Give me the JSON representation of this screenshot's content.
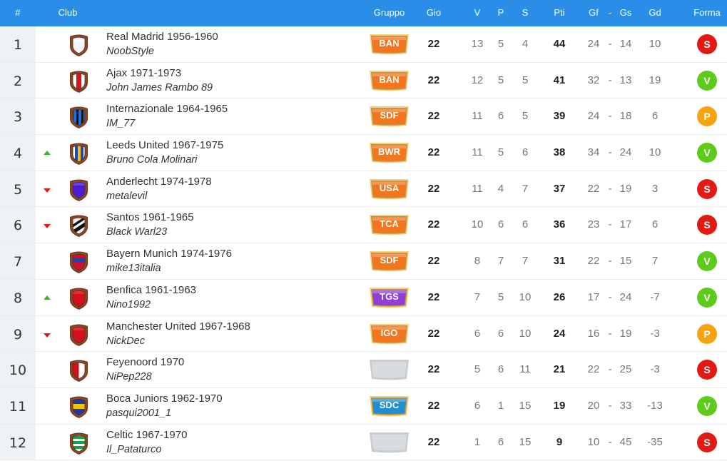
{
  "header": {
    "rank": "#",
    "club": "Club",
    "group": "Gruppo",
    "played": "Gio",
    "won": "V",
    "drawn": "P",
    "lost": "S",
    "points": "Pti",
    "goals_for": "Gf",
    "dash": "-",
    "goals_against": "Gs",
    "goal_diff": "Gd",
    "form": "Forma"
  },
  "colors": {
    "header_bg": "#2a8ee8",
    "form_S": "#e11a14",
    "form_V": "#5dcb19",
    "form_P": "#f7a30e",
    "badge_orange": "#f3761c",
    "badge_purple": "#8e3fd6",
    "badge_blue": "#1f8fd1",
    "badge_empty": "#d9dcdf"
  },
  "rows": [
    {
      "rank": "1",
      "trend": "",
      "club": "Real Madrid 1956-1960",
      "manager": "NoobStyle",
      "group": "BAN",
      "group_style": "orange",
      "shield": "white",
      "played": "22",
      "won": "13",
      "drawn": "5",
      "lost": "4",
      "points": "44",
      "gf": "24",
      "sep": "-",
      "gs": "14",
      "gd": "10",
      "form": "S",
      "form_style": "S"
    },
    {
      "rank": "2",
      "trend": "",
      "club": "Ajax 1971-1973",
      "manager": "John James Rambo 89",
      "group": "BAN",
      "group_style": "orange",
      "shield": "ajax",
      "played": "22",
      "won": "12",
      "drawn": "5",
      "lost": "5",
      "points": "41",
      "gf": "32",
      "sep": "-",
      "gs": "13",
      "gd": "19",
      "form": "V",
      "form_style": "V"
    },
    {
      "rank": "3",
      "trend": "",
      "club": "Internazionale 1964-1965",
      "manager": "IM_77",
      "group": "SDF",
      "group_style": "orange",
      "shield": "inter",
      "played": "22",
      "won": "11",
      "drawn": "6",
      "lost": "5",
      "points": "39",
      "gf": "24",
      "sep": "-",
      "gs": "18",
      "gd": "6",
      "form": "P",
      "form_style": "P"
    },
    {
      "rank": "4",
      "trend": "up",
      "club": "Leeds United 1967-1975",
      "manager": "Bruno Cola Molinari",
      "group": "BWR",
      "group_style": "orange",
      "shield": "leeds",
      "played": "22",
      "won": "11",
      "drawn": "5",
      "lost": "6",
      "points": "38",
      "gf": "34",
      "sep": "-",
      "gs": "24",
      "gd": "10",
      "form": "V",
      "form_style": "V"
    },
    {
      "rank": "5",
      "trend": "down",
      "club": "Anderlecht 1974-1978",
      "manager": "metalevil",
      "group": "USA",
      "group_style": "orange",
      "shield": "purple",
      "played": "22",
      "won": "11",
      "drawn": "4",
      "lost": "7",
      "points": "37",
      "gf": "22",
      "sep": "-",
      "gs": "19",
      "gd": "3",
      "form": "S",
      "form_style": "S"
    },
    {
      "rank": "6",
      "trend": "down",
      "club": "Santos 1961-1965",
      "manager": "Black Warl23",
      "group": "TCA",
      "group_style": "orange",
      "shield": "santos",
      "played": "22",
      "won": "10",
      "drawn": "6",
      "lost": "6",
      "points": "36",
      "gf": "23",
      "sep": "-",
      "gs": "17",
      "gd": "6",
      "form": "S",
      "form_style": "S"
    },
    {
      "rank": "7",
      "trend": "",
      "club": "Bayern Munich 1974-1976",
      "manager": "mike13italia",
      "group": "SDF",
      "group_style": "orange",
      "shield": "bayern",
      "played": "22",
      "won": "8",
      "drawn": "7",
      "lost": "7",
      "points": "31",
      "gf": "22",
      "sep": "-",
      "gs": "15",
      "gd": "7",
      "form": "V",
      "form_style": "V"
    },
    {
      "rank": "8",
      "trend": "up",
      "club": "Benfica 1961-1963",
      "manager": "Nino1992",
      "group": "TGS",
      "group_style": "purple",
      "shield": "red",
      "played": "22",
      "won": "7",
      "drawn": "5",
      "lost": "10",
      "points": "26",
      "gf": "17",
      "sep": "-",
      "gs": "24",
      "gd": "-7",
      "form": "V",
      "form_style": "V"
    },
    {
      "rank": "9",
      "trend": "down",
      "club": "Manchester United 1967-1968",
      "manager": "NickDec",
      "group": "IGO",
      "group_style": "orange",
      "shield": "red",
      "played": "22",
      "won": "6",
      "drawn": "6",
      "lost": "10",
      "points": "24",
      "gf": "16",
      "sep": "-",
      "gs": "19",
      "gd": "-3",
      "form": "P",
      "form_style": "P"
    },
    {
      "rank": "10",
      "trend": "",
      "club": "Feyenoord 1970",
      "manager": "NiPep228",
      "group": "",
      "group_style": "empty",
      "shield": "feyenoord",
      "played": "22",
      "won": "5",
      "drawn": "6",
      "lost": "11",
      "points": "21",
      "gf": "22",
      "sep": "-",
      "gs": "25",
      "gd": "-3",
      "form": "S",
      "form_style": "S"
    },
    {
      "rank": "11",
      "trend": "",
      "club": "Boca Juniors 1962-1970",
      "manager": "pasqui2001_1",
      "group": "SDC",
      "group_style": "blue",
      "shield": "boca",
      "played": "22",
      "won": "6",
      "drawn": "1",
      "lost": "15",
      "points": "19",
      "gf": "20",
      "sep": "-",
      "gs": "33",
      "gd": "-13",
      "form": "V",
      "form_style": "V"
    },
    {
      "rank": "12",
      "trend": "",
      "club": "Celtic 1967-1970",
      "manager": "Il_Pataturco",
      "group": "",
      "group_style": "empty",
      "shield": "celtic",
      "played": "22",
      "won": "1",
      "drawn": "6",
      "lost": "15",
      "points": "9",
      "gf": "10",
      "sep": "-",
      "gs": "45",
      "gd": "-35",
      "form": "S",
      "form_style": "S"
    }
  ]
}
